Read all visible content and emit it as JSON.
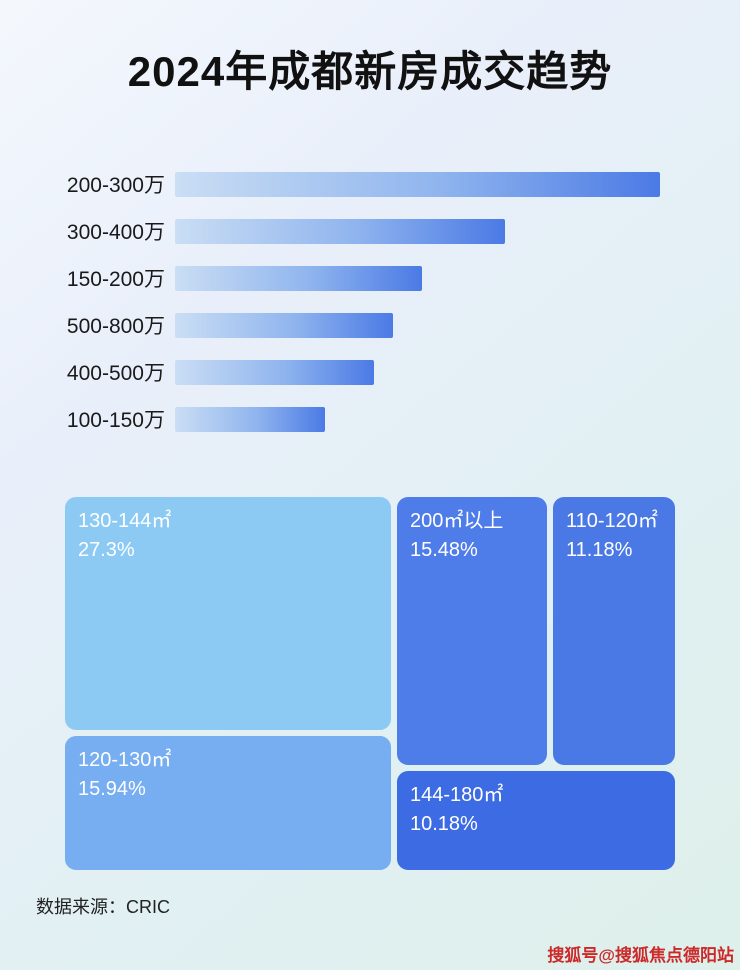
{
  "page": {
    "title": "2024年成都新房成交趋势",
    "source_note": "数据来源：CRIC",
    "watermark": "搜狐号@搜狐焦点德阳站"
  },
  "colors": {
    "bar_gradient_start": "#cadef4",
    "bar_gradient_end": "#4b7ae5",
    "treemap_130_144": "#8ccaf4",
    "treemap_120_130": "#77adf1",
    "treemap_200_plus": "#4e7de9",
    "treemap_110_120": "#4a79e6",
    "treemap_144_180": "#3d6be3",
    "watermark_red": "#cc2a2a"
  },
  "chart_data": [
    {
      "type": "bar",
      "orientation": "horizontal",
      "title": "2024年成都新房成交趋势",
      "categories": [
        "200-300万",
        "300-400万",
        "150-200万",
        "500-800万",
        "400-500万",
        "100-150万"
      ],
      "values": [
        100,
        68,
        51,
        45,
        41,
        31
      ],
      "value_note": "bar lengths as percent of longest bar; chart shows no numeric axis or data labels",
      "xlabel": "",
      "ylabel": "",
      "grid": false,
      "legend": false
    },
    {
      "type": "treemap",
      "title": "",
      "items": [
        {
          "label": "130-144㎡",
          "percent": "27.3%",
          "value": 27.3
        },
        {
          "label": "200㎡以上",
          "percent": "15.48%",
          "value": 15.48
        },
        {
          "label": "110-120㎡",
          "percent": "11.18%",
          "value": 11.18
        },
        {
          "label": "120-130㎡",
          "percent": "15.94%",
          "value": 15.94
        },
        {
          "label": "144-180㎡",
          "percent": "10.18%",
          "value": 10.18
        }
      ]
    }
  ]
}
